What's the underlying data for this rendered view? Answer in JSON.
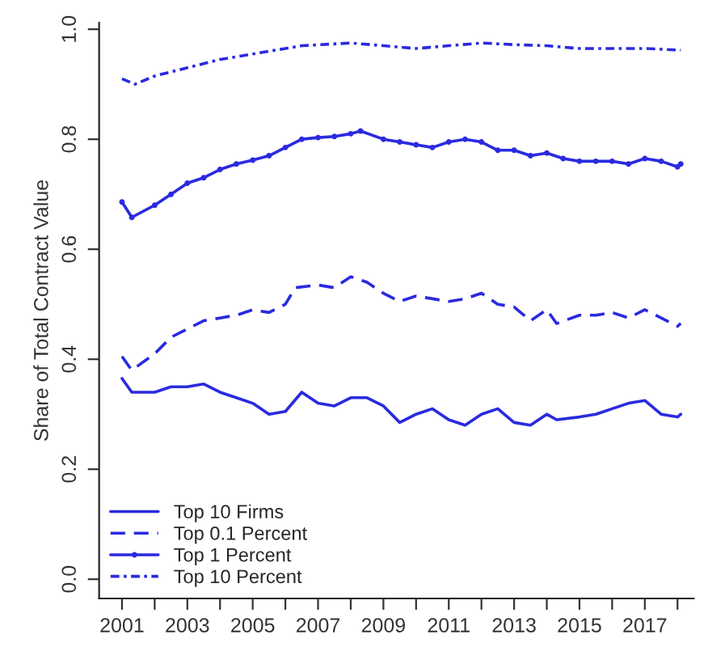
{
  "chart_data": {
    "type": "line",
    "ylabel": "Share of Total Contract Value",
    "xlim": [
      2000.3,
      2018.5
    ],
    "ylim": [
      -0.035,
      1.012
    ],
    "xticks": [
      {
        "value": 2001,
        "label": "2001"
      },
      {
        "value": 2002,
        "label": null
      },
      {
        "value": 2003,
        "label": "2003"
      },
      {
        "value": 2004,
        "label": null
      },
      {
        "value": 2005,
        "label": "2005"
      },
      {
        "value": 2006,
        "label": null
      },
      {
        "value": 2007,
        "label": "2007"
      },
      {
        "value": 2008,
        "label": null
      },
      {
        "value": 2009,
        "label": "2009"
      },
      {
        "value": 2010,
        "label": null
      },
      {
        "value": 2011,
        "label": "2011"
      },
      {
        "value": 2012,
        "label": null
      },
      {
        "value": 2013,
        "label": "2013"
      },
      {
        "value": 2014,
        "label": null
      },
      {
        "value": 2015,
        "label": "2015"
      },
      {
        "value": 2016,
        "label": null
      },
      {
        "value": 2017,
        "label": "2017"
      },
      {
        "value": 2018,
        "label": null
      }
    ],
    "yticks": [
      {
        "value": 0,
        "label": "0.0"
      },
      {
        "value": 0.2,
        "label": "0.2"
      },
      {
        "value": 0.4,
        "label": "0.4"
      },
      {
        "value": 0.6,
        "label": "0.6"
      },
      {
        "value": 0.8,
        "label": "0.8"
      },
      {
        "value": 1.0,
        "label": "1.0"
      }
    ],
    "grid": false,
    "legend": "bottom left",
    "series": [
      {
        "name": "Top 10 Firms",
        "color": "#2a2ae0",
        "line_style": "solid",
        "x": [
          2001,
          2001.3,
          2002,
          2002.5,
          2003,
          2003.5,
          2004,
          2004.5,
          2005,
          2005.5,
          2006,
          2006.5,
          2007,
          2007.5,
          2008,
          2008.5,
          2009,
          2009.5,
          2010,
          2010.5,
          2011,
          2011.5,
          2012,
          2012.5,
          2013,
          2013.5,
          2014,
          2014.3,
          2015,
          2015.5,
          2016,
          2016.5,
          2017,
          2017.5,
          2018,
          2018.1
        ],
        "values": [
          0.365,
          0.34,
          0.34,
          0.35,
          0.35,
          0.355,
          0.34,
          0.33,
          0.32,
          0.3,
          0.305,
          0.34,
          0.32,
          0.315,
          0.33,
          0.33,
          0.315,
          0.285,
          0.3,
          0.31,
          0.29,
          0.28,
          0.3,
          0.31,
          0.285,
          0.28,
          0.3,
          0.29,
          0.295,
          0.3,
          0.31,
          0.32,
          0.325,
          0.3,
          0.295,
          0.3
        ]
      },
      {
        "name": "Top 0.1 Percent",
        "color": "#2a2ae0",
        "line_style": "dashed",
        "x": [
          2001,
          2001.3,
          2002,
          2002.5,
          2003,
          2003.5,
          2004,
          2004.5,
          2005,
          2005.5,
          2006,
          2006.3,
          2007,
          2007.5,
          2008,
          2008.5,
          2009,
          2009.5,
          2010,
          2010.5,
          2011,
          2011.5,
          2012,
          2012.5,
          2013,
          2013.5,
          2014,
          2014.3,
          2015,
          2015.5,
          2016,
          2016.5,
          2017,
          2017.5,
          2018,
          2018.1
        ],
        "values": [
          0.405,
          0.38,
          0.41,
          0.44,
          0.455,
          0.47,
          0.475,
          0.48,
          0.49,
          0.485,
          0.5,
          0.53,
          0.535,
          0.53,
          0.55,
          0.54,
          0.52,
          0.505,
          0.515,
          0.51,
          0.505,
          0.51,
          0.52,
          0.5,
          0.495,
          0.47,
          0.49,
          0.465,
          0.48,
          0.48,
          0.485,
          0.475,
          0.49,
          0.475,
          0.46,
          0.465
        ]
      },
      {
        "name": "Top 1 Percent",
        "color": "#2a2ae0",
        "line_style": "solid",
        "marker": "circle",
        "x": [
          2001,
          2001.3,
          2002,
          2002.5,
          2003,
          2003.5,
          2004,
          2004.5,
          2005,
          2005.5,
          2006,
          2006.5,
          2007,
          2007.5,
          2008,
          2008.3,
          2009,
          2009.5,
          2010,
          2010.5,
          2011,
          2011.5,
          2012,
          2012.5,
          2013,
          2013.5,
          2014,
          2014.5,
          2015,
          2015.5,
          2016,
          2016.5,
          2017,
          2017.5,
          2018,
          2018.1
        ],
        "values": [
          0.686,
          0.658,
          0.68,
          0.7,
          0.72,
          0.73,
          0.745,
          0.755,
          0.762,
          0.77,
          0.785,
          0.8,
          0.803,
          0.805,
          0.81,
          0.815,
          0.8,
          0.795,
          0.79,
          0.785,
          0.795,
          0.8,
          0.795,
          0.78,
          0.78,
          0.77,
          0.775,
          0.765,
          0.76,
          0.76,
          0.76,
          0.755,
          0.765,
          0.76,
          0.75,
          0.755
        ]
      },
      {
        "name": "Top 10 Percent",
        "color": "#2a2ae0",
        "line_style": "dashdot",
        "x": [
          2001,
          2001.4,
          2002,
          2003,
          2004,
          2005,
          2006,
          2006.5,
          2008,
          2009,
          2010,
          2011,
          2012,
          2013,
          2014,
          2015,
          2016,
          2017,
          2018.1
        ],
        "values": [
          0.91,
          0.9,
          0.915,
          0.93,
          0.945,
          0.955,
          0.965,
          0.97,
          0.975,
          0.97,
          0.965,
          0.97,
          0.975,
          0.972,
          0.97,
          0.965,
          0.965,
          0.965,
          0.962
        ]
      }
    ]
  }
}
